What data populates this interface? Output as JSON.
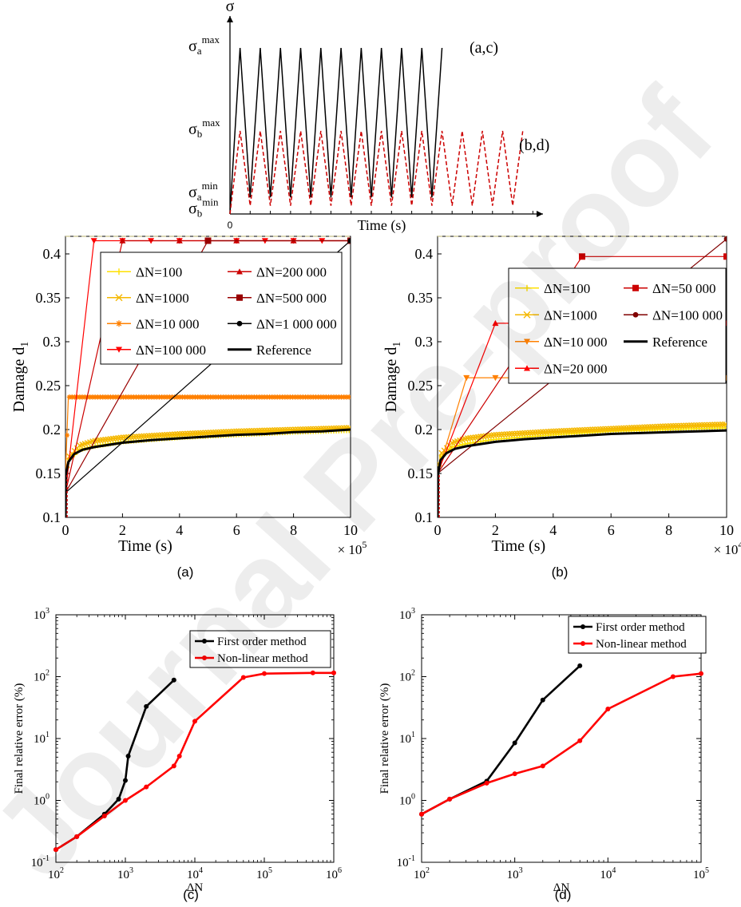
{
  "watermark": "Journal Pre-proof",
  "chart_data": [
    {
      "id": "loading",
      "type": "line",
      "ylabel": "σ",
      "xlabel": "Time (s)",
      "origin_label": "0",
      "y_levels": {
        "a_max": 1.0,
        "b_max": 0.5,
        "a_min": 0.1,
        "b_min": 0.05
      },
      "tick_labels": [
        {
          "base": "σ",
          "sub": "a",
          "sup": "max",
          "level": "a_max"
        },
        {
          "base": "σ",
          "sub": "b",
          "sup": "max",
          "level": "b_max"
        },
        {
          "base": "σ",
          "sub": "a",
          "sup": "min",
          "level": "a_min"
        },
        {
          "base": "σ",
          "sub": "b",
          "sup": "min",
          "level": "b_min"
        }
      ],
      "series": [
        {
          "label": "(a,c)",
          "color": "#000000",
          "style": "solid",
          "cycles": 10,
          "min": "a_min",
          "max": "a_max",
          "period": 1,
          "xmax": 10
        },
        {
          "label": "(b,d)",
          "color": "#cc0000",
          "style": "dashed",
          "cycles": 14,
          "min": "b_min",
          "max": "b_max",
          "period": 1,
          "xmax": 14
        }
      ],
      "xlim": [
        0,
        15.5
      ]
    },
    {
      "id": "a",
      "type": "line",
      "caption": "(a)",
      "xlabel": "Time (s)",
      "ylabel": "Damage d",
      "ylabel_sub": "1",
      "x_multiplier": "× 10",
      "x_multiplier_exp": "5",
      "xlim": [
        0,
        10
      ],
      "ylim": [
        0.1,
        0.42
      ],
      "xticks": [
        0,
        2,
        4,
        6,
        8,
        10
      ],
      "yticks": [
        0.1,
        0.15,
        0.2,
        0.25,
        0.3,
        0.35,
        0.4
      ],
      "ytick_labels": [
        "0.1",
        "0.15",
        "0.2",
        "0.25",
        "0.3",
        "0.35",
        "0.4"
      ],
      "legend_position": "top-center",
      "legend_columns": 2,
      "series": [
        {
          "name": "ΔN=100",
          "color": "#ffe000",
          "marker": "plus",
          "points": [
            [
              0,
              0.15
            ],
            [
              0.1,
              0.165
            ],
            [
              0.5,
              0.177
            ],
            [
              1,
              0.181
            ],
            [
              2,
              0.186
            ],
            [
              4,
              0.191
            ],
            [
              6,
              0.194
            ],
            [
              8,
              0.197
            ],
            [
              10,
              0.199
            ]
          ]
        },
        {
          "name": "ΔN=1000",
          "color": "#f5b800",
          "marker": "x",
          "points": [
            [
              0,
              0.15
            ],
            [
              0.1,
              0.168
            ],
            [
              0.5,
              0.182
            ],
            [
              1,
              0.187
            ],
            [
              2,
              0.191
            ],
            [
              4,
              0.195
            ],
            [
              6,
              0.198
            ],
            [
              8,
              0.2
            ],
            [
              10,
              0.202
            ]
          ]
        },
        {
          "name": "ΔN=10 000",
          "color": "#ff8000",
          "marker": "star",
          "points": [
            [
              0,
              0.15
            ],
            [
              0.1,
              0.237
            ],
            [
              1,
              0.237
            ],
            [
              3,
              0.237
            ],
            [
              5,
              0.237
            ],
            [
              7,
              0.237
            ],
            [
              10,
              0.237
            ]
          ]
        },
        {
          "name": "ΔN=100 000",
          "color": "#ff0000",
          "marker": "triangle-down",
          "points": [
            [
              0,
              0.128
            ],
            [
              1,
              0.415
            ],
            [
              2,
              0.415
            ],
            [
              3,
              0.415
            ],
            [
              4,
              0.415
            ],
            [
              5,
              0.415
            ],
            [
              6,
              0.415
            ],
            [
              7,
              0.415
            ],
            [
              8,
              0.415
            ],
            [
              9,
              0.415
            ],
            [
              10,
              0.415
            ]
          ]
        },
        {
          "name": "ΔN=200 000",
          "color": "#cc0000",
          "marker": "triangle-up",
          "points": [
            [
              0,
              0.128
            ],
            [
              2,
              0.415
            ],
            [
              4,
              0.415
            ],
            [
              6,
              0.415
            ],
            [
              8,
              0.415
            ],
            [
              10,
              0.415
            ]
          ]
        },
        {
          "name": "ΔN=500 000",
          "color": "#990000",
          "marker": "square",
          "points": [
            [
              0,
              0.128
            ],
            [
              5,
              0.415
            ],
            [
              10,
              0.415
            ]
          ]
        },
        {
          "name": "ΔN=1 000 000",
          "color": "#000000",
          "marker": "dot",
          "points": [
            [
              0,
              0.128
            ],
            [
              10,
              0.415
            ]
          ]
        },
        {
          "name": "Reference",
          "color": "#000000",
          "marker": "none",
          "width": 3,
          "points": [
            [
              0,
              0.1
            ],
            [
              0.02,
              0.15
            ],
            [
              0.1,
              0.163
            ],
            [
              0.3,
              0.172
            ],
            [
              0.6,
              0.177
            ],
            [
              1,
              0.18
            ],
            [
              2,
              0.185
            ],
            [
              3,
              0.188
            ],
            [
              4,
              0.19
            ],
            [
              5,
              0.192
            ],
            [
              6,
              0.194
            ],
            [
              7,
              0.195
            ],
            [
              8,
              0.197
            ],
            [
              9,
              0.198
            ],
            [
              10,
              0.2
            ]
          ]
        }
      ]
    },
    {
      "id": "b",
      "type": "line",
      "caption": "(b)",
      "xlabel": "Time (s)",
      "ylabel": "Damage d",
      "ylabel_sub": "1",
      "x_multiplier": "× 10",
      "x_multiplier_exp": "4",
      "xlim": [
        0,
        10
      ],
      "ylim": [
        0.1,
        0.42
      ],
      "xticks": [
        0,
        2,
        4,
        6,
        8,
        10
      ],
      "yticks": [
        0.1,
        0.15,
        0.2,
        0.25,
        0.3,
        0.35,
        0.4
      ],
      "ytick_labels": [
        "0.1",
        "0.15",
        "0.2",
        "0.25",
        "0.3",
        "0.35",
        "0.4"
      ],
      "legend_position": "top-center",
      "legend_columns": 2,
      "series": [
        {
          "name": "ΔN=100",
          "color": "#ffe000",
          "marker": "plus",
          "points": [
            [
              0,
              0.15
            ],
            [
              0.1,
              0.168
            ],
            [
              0.5,
              0.18
            ],
            [
              1,
              0.184
            ],
            [
              2,
              0.189
            ],
            [
              4,
              0.194
            ],
            [
              6,
              0.198
            ],
            [
              8,
              0.2
            ],
            [
              10,
              0.202
            ]
          ]
        },
        {
          "name": "ΔN=1000",
          "color": "#f5b800",
          "marker": "x",
          "points": [
            [
              0,
              0.15
            ],
            [
              0.1,
              0.172
            ],
            [
              0.5,
              0.185
            ],
            [
              1,
              0.19
            ],
            [
              2,
              0.194
            ],
            [
              4,
              0.198
            ],
            [
              6,
              0.201
            ],
            [
              8,
              0.204
            ],
            [
              10,
              0.206
            ]
          ]
        },
        {
          "name": "ΔN=10 000",
          "color": "#ff8000",
          "marker": "triangle-down",
          "points": [
            [
              0,
              0.15
            ],
            [
              1,
              0.259
            ],
            [
              2,
              0.259
            ],
            [
              3,
              0.259
            ],
            [
              4,
              0.259
            ],
            [
              5,
              0.259
            ],
            [
              6,
              0.259
            ],
            [
              7,
              0.259
            ],
            [
              8,
              0.259
            ],
            [
              9,
              0.259
            ],
            [
              10,
              0.259
            ]
          ]
        },
        {
          "name": "ΔN=20 000",
          "color": "#ff0000",
          "marker": "triangle-up",
          "points": [
            [
              0,
              0.15
            ],
            [
              2,
              0.321
            ],
            [
              4,
              0.321
            ],
            [
              6,
              0.321
            ],
            [
              8,
              0.321
            ],
            [
              10,
              0.321
            ]
          ]
        },
        {
          "name": "ΔN=50 000",
          "color": "#cc0000",
          "marker": "square",
          "points": [
            [
              0,
              0.15
            ],
            [
              5,
              0.397
            ],
            [
              10,
              0.397
            ]
          ]
        },
        {
          "name": "ΔN=100 000",
          "color": "#800000",
          "marker": "dot",
          "points": [
            [
              0,
              0.15
            ],
            [
              10,
              0.417
            ]
          ]
        },
        {
          "name": "Reference",
          "color": "#000000",
          "marker": "none",
          "width": 3,
          "points": [
            [
              0,
              0.1
            ],
            [
              0.02,
              0.15
            ],
            [
              0.1,
              0.165
            ],
            [
              0.3,
              0.173
            ],
            [
              0.6,
              0.178
            ],
            [
              1,
              0.181
            ],
            [
              2,
              0.186
            ],
            [
              3,
              0.189
            ],
            [
              4,
              0.191
            ],
            [
              5,
              0.193
            ],
            [
              6,
              0.195
            ],
            [
              7,
              0.196
            ],
            [
              8,
              0.197
            ],
            [
              9,
              0.198
            ],
            [
              10,
              0.199
            ]
          ]
        }
      ]
    },
    {
      "id": "c",
      "type": "line",
      "caption": "(c)",
      "xlabel": "ΔN",
      "ylabel": "Final relative error (%)",
      "xscale": "log",
      "yscale": "log",
      "xlim": [
        100,
        1000000
      ],
      "ylim": [
        0.1,
        1000
      ],
      "xtick_exps": [
        2,
        3,
        4,
        5,
        6
      ],
      "ytick_exps": [
        -1,
        0,
        1,
        2,
        3
      ],
      "tick_base": "10",
      "legend_position": "top-right",
      "series": [
        {
          "name": "First order method",
          "color": "#000000",
          "points": [
            [
              100,
              0.16
            ],
            [
              200,
              0.26
            ],
            [
              500,
              0.6
            ],
            [
              800,
              1.05
            ],
            [
              1000,
              2.1
            ],
            [
              1100,
              5.2
            ],
            [
              2000,
              33
            ],
            [
              5000,
              88
            ]
          ]
        },
        {
          "name": "Non-linear method",
          "color": "#ff0000",
          "points": [
            [
              100,
              0.16
            ],
            [
              200,
              0.26
            ],
            [
              500,
              0.56
            ],
            [
              1000,
              1.0
            ],
            [
              2000,
              1.65
            ],
            [
              5000,
              3.6
            ],
            [
              6000,
              5.2
            ],
            [
              10000,
              19
            ],
            [
              50000,
              97
            ],
            [
              100000,
              112
            ],
            [
              500000,
              115
            ],
            [
              1000000,
              115
            ]
          ]
        }
      ]
    },
    {
      "id": "d",
      "type": "line",
      "caption": "(d)",
      "xlabel": "ΔN",
      "ylabel": "Final relative error (%)",
      "xscale": "log",
      "yscale": "log",
      "xlim": [
        100,
        100000
      ],
      "ylim": [
        0.1,
        1000
      ],
      "xtick_exps": [
        2,
        3,
        4,
        5
      ],
      "ytick_exps": [
        -1,
        0,
        1,
        2,
        3
      ],
      "tick_base": "10",
      "legend_position": "top-right",
      "series": [
        {
          "name": "First order method",
          "color": "#000000",
          "points": [
            [
              100,
              0.6
            ],
            [
              200,
              1.05
            ],
            [
              500,
              2.05
            ],
            [
              1000,
              8.5
            ],
            [
              2000,
              42
            ],
            [
              5000,
              150
            ]
          ]
        },
        {
          "name": "Non-linear method",
          "color": "#ff0000",
          "points": [
            [
              100,
              0.6
            ],
            [
              200,
              1.05
            ],
            [
              500,
              1.9
            ],
            [
              1000,
              2.7
            ],
            [
              2000,
              3.6
            ],
            [
              5000,
              9.2
            ],
            [
              10000,
              30
            ],
            [
              50000,
              100
            ],
            [
              100000,
              112
            ]
          ]
        }
      ]
    }
  ]
}
